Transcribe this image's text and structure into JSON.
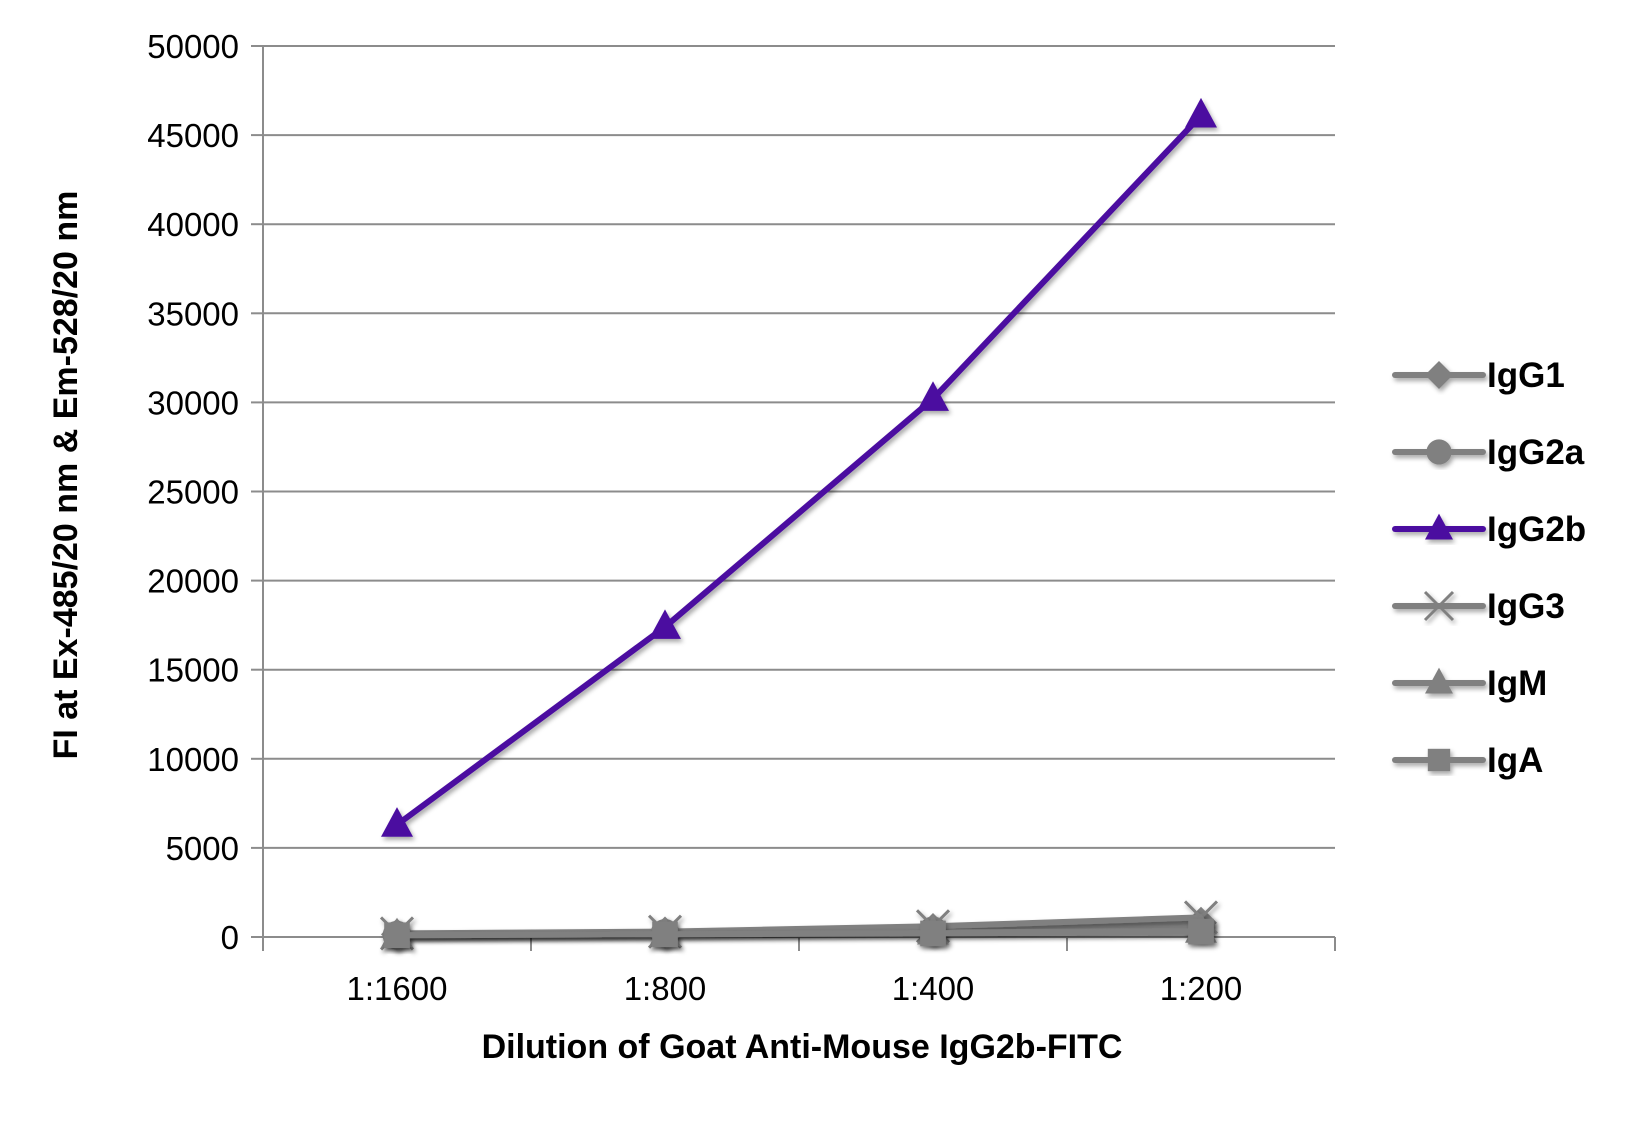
{
  "chart_data": {
    "type": "line",
    "title": "",
    "xlabel": "Dilution of Goat Anti-Mouse IgG2b-FITC",
    "ylabel": "FI at Ex-485/20 nm & Em-528/20 nm",
    "categories": [
      "1:1600",
      "1:800",
      "1:400",
      "1:200"
    ],
    "ylim": [
      0,
      50000
    ],
    "yticks": [
      0,
      5000,
      10000,
      15000,
      20000,
      25000,
      30000,
      35000,
      40000,
      45000,
      50000
    ],
    "grid": "horizontal",
    "legend_position": "right",
    "series": [
      {
        "name": "IgG1",
        "values": [
          150,
          250,
          450,
          800
        ],
        "color": "#808080",
        "marker": "diamond"
      },
      {
        "name": "IgG2a",
        "values": [
          100,
          200,
          350,
          550
        ],
        "color": "#808080",
        "marker": "circle"
      },
      {
        "name": "IgG2b",
        "values": [
          6300,
          17400,
          30200,
          46100
        ],
        "color": "#4B0FA0",
        "marker": "triangle"
      },
      {
        "name": "IgG3",
        "values": [
          200,
          300,
          600,
          1100
        ],
        "color": "#808080",
        "marker": "x"
      },
      {
        "name": "IgM",
        "values": [
          100,
          150,
          250,
          350
        ],
        "color": "#808080",
        "marker": "triangle"
      },
      {
        "name": "IgA",
        "values": [
          100,
          150,
          200,
          300
        ],
        "color": "#808080",
        "marker": "square"
      }
    ]
  }
}
